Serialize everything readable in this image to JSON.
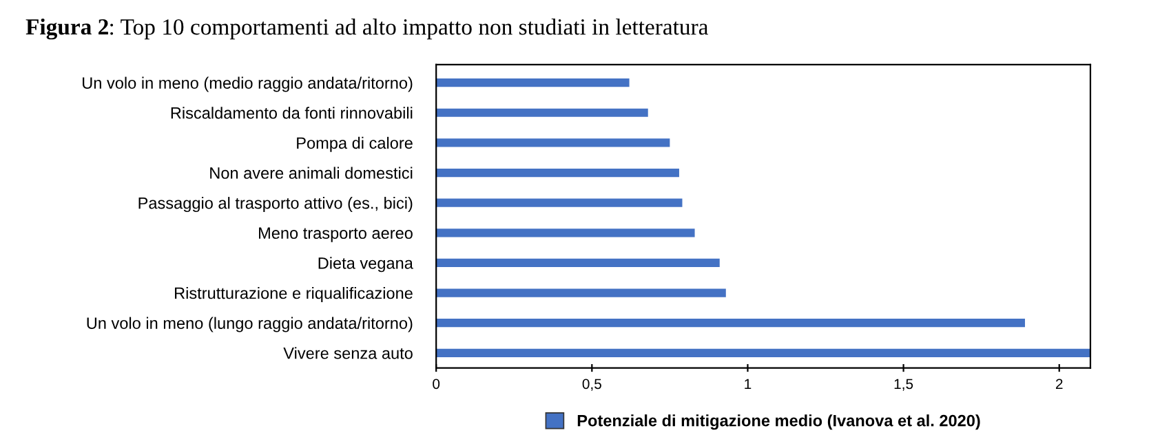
{
  "chart_data": {
    "type": "bar",
    "orientation": "horizontal",
    "title": "Figura 2: Top 10 comportamenti ad alto impatto non studiati in letteratura",
    "categories": [
      "Un volo in meno (medio raggio andata/ritorno)",
      "Riscaldamento da fonti rinnovabili",
      "Pompa di calore",
      "Non avere animali domestici",
      "Passaggio al trasporto attivo (es., bici)",
      "Meno trasporto aereo",
      "Dieta vegana",
      "Ristrutturazione e riqualificazione",
      "Un volo in meno (lungo raggio andata/ritorno)",
      "Vivere senza auto"
    ],
    "series": [
      {
        "name": "Potenziale di mitigazione medio (Ivanova et al. 2020)",
        "color": "#4472c4",
        "values": [
          0.62,
          0.68,
          0.75,
          0.78,
          0.79,
          0.83,
          0.91,
          0.93,
          1.89,
          2.1
        ]
      }
    ],
    "xlim": [
      0,
      2.1
    ],
    "xticks": [
      0,
      {
        "value": 0.5,
        "label": "0,5"
      },
      1,
      {
        "value": 1.5,
        "label": "1,5"
      },
      2
    ],
    "grid": false,
    "legend": "bottom"
  }
}
